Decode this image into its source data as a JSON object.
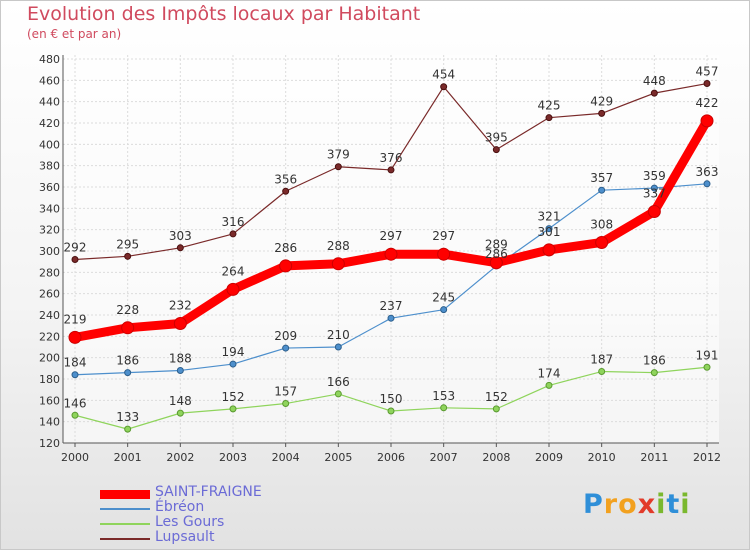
{
  "title": "Evolution des Impôts locaux par Habitant",
  "subtitle": "(en € et par an)",
  "brand": {
    "text": "Proxiti",
    "letters": [
      {
        "ch": "P",
        "color": "#2f8fd8"
      },
      {
        "ch": "r",
        "color": "#f2a11f"
      },
      {
        "ch": "o",
        "color": "#f2a11f"
      },
      {
        "ch": "x",
        "color": "#e23b2a"
      },
      {
        "ch": "i",
        "color": "#7ab82e"
      },
      {
        "ch": "t",
        "color": "#2f8fd8"
      },
      {
        "ch": "i",
        "color": "#7ab82e"
      }
    ]
  },
  "chart_data": {
    "type": "line",
    "title": "Evolution des Impôts locaux par Habitant",
    "subtitle": "(en € et par an)",
    "x": [
      "2000",
      "2001",
      "2002",
      "2003",
      "2004",
      "2005",
      "2006",
      "2007",
      "2008",
      "2009",
      "2010",
      "2011",
      "2012"
    ],
    "ylim": [
      120,
      480
    ],
    "yticks": [
      120,
      140,
      160,
      180,
      200,
      220,
      240,
      260,
      280,
      300,
      320,
      340,
      360,
      380,
      400,
      420,
      440,
      460,
      480
    ],
    "grid": true,
    "legend_position": "bottom-left",
    "series": [
      {
        "name": "SAINT-FRAIGNE",
        "color": "#ff0000",
        "values": [
          219,
          228,
          232,
          264,
          286,
          288,
          297,
          297,
          289,
          301,
          308,
          337,
          422
        ],
        "labels": [
          "219",
          "228",
          "232",
          "264",
          "286",
          "288",
          "297",
          "297",
          "289",
          "301",
          "308",
          "337",
          "422"
        ]
      },
      {
        "name": "Ébréon",
        "color": "#4d8fcc",
        "values": [
          184,
          186,
          188,
          194,
          209,
          210,
          237,
          245,
          286,
          321,
          357,
          359,
          363
        ],
        "labels": [
          "184",
          "186",
          "188",
          "194",
          "209",
          "210",
          "237",
          "245",
          "286",
          "321",
          "357",
          "359",
          "363"
        ]
      },
      {
        "name": "Les Gours",
        "color": "#8fd45c",
        "values": [
          146,
          133,
          148,
          152,
          157,
          166,
          150,
          153,
          152,
          174,
          187,
          186,
          191
        ],
        "labels": [
          "146",
          "133",
          "148",
          "152",
          "157",
          "166",
          "150",
          "153",
          "152",
          "174",
          "187",
          "186",
          "191"
        ]
      },
      {
        "name": "Lupsault",
        "color": "#7a2a2a",
        "values": [
          292,
          295,
          303,
          316,
          356,
          379,
          376,
          454,
          395,
          425,
          429,
          448,
          457
        ],
        "labels": [
          "292",
          "295",
          "303",
          "316",
          "356",
          "379",
          "376",
          "454",
          "395",
          "425",
          "429",
          "448",
          "457"
        ]
      }
    ]
  }
}
